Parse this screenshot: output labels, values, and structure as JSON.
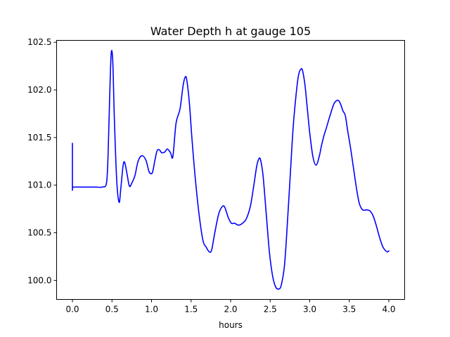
{
  "chart_data": {
    "type": "line",
    "title": "Water Depth h at gauge 105",
    "xlabel": "hours",
    "ylabel": "",
    "xlim": [
      -0.2,
      4.2
    ],
    "ylim": [
      99.8,
      102.52
    ],
    "x_ticks": [
      0.0,
      0.5,
      1.0,
      1.5,
      2.0,
      2.5,
      3.0,
      3.5,
      4.0
    ],
    "x_tick_labels": [
      "0.0",
      "0.5",
      "1.0",
      "1.5",
      "2.0",
      "2.5",
      "3.0",
      "3.5",
      "4.0"
    ],
    "y_ticks": [
      100.0,
      100.5,
      101.0,
      101.5,
      102.0,
      102.5
    ],
    "y_tick_labels": [
      "100.0",
      "100.5",
      "101.0",
      "101.5",
      "102.0",
      "102.5"
    ],
    "grid": false,
    "series": [
      {
        "color": "#0000ff",
        "x": [
          0.0,
          0.0,
          0.01,
          0.1,
          0.2,
          0.3,
          0.38,
          0.43,
          0.45,
          0.47,
          0.49,
          0.51,
          0.53,
          0.56,
          0.59,
          0.61,
          0.64,
          0.66,
          0.69,
          0.72,
          0.75,
          0.79,
          0.83,
          0.88,
          0.93,
          0.97,
          1.01,
          1.04,
          1.07,
          1.1,
          1.13,
          1.17,
          1.2,
          1.24,
          1.27,
          1.31,
          1.36,
          1.4,
          1.43,
          1.45,
          1.48,
          1.51,
          1.55,
          1.6,
          1.65,
          1.69,
          1.73,
          1.76,
          1.8,
          1.85,
          1.9,
          1.93,
          1.97,
          2.01,
          2.05,
          2.1,
          2.15,
          2.2,
          2.25,
          2.29,
          2.33,
          2.36,
          2.38,
          2.41,
          2.45,
          2.49,
          2.53,
          2.57,
          2.61,
          2.64,
          2.68,
          2.71,
          2.75,
          2.79,
          2.83,
          2.86,
          2.89,
          2.91,
          2.94,
          2.97,
          3.0,
          3.04,
          3.08,
          3.12,
          3.15,
          3.18,
          3.21,
          3.26,
          3.31,
          3.36,
          3.39,
          3.42,
          3.45,
          3.48,
          3.52,
          3.56,
          3.6,
          3.63,
          3.67,
          3.72,
          3.76,
          3.8,
          3.84,
          3.88,
          3.92,
          3.95,
          3.98,
          4.0
        ],
        "y": [
          101.44,
          100.98,
          100.98,
          100.98,
          100.98,
          100.98,
          100.98,
          101.02,
          101.3,
          101.9,
          102.38,
          102.3,
          101.7,
          101.05,
          100.82,
          100.95,
          101.2,
          101.24,
          101.12,
          100.99,
          101.02,
          101.1,
          101.25,
          101.31,
          101.26,
          101.14,
          101.13,
          101.25,
          101.36,
          101.37,
          101.34,
          101.35,
          101.38,
          101.34,
          101.3,
          101.65,
          101.8,
          102.05,
          102.14,
          102.08,
          101.85,
          101.5,
          101.1,
          100.7,
          100.42,
          100.35,
          100.3,
          100.32,
          100.5,
          100.7,
          100.78,
          100.76,
          100.66,
          100.6,
          100.6,
          100.58,
          100.6,
          100.65,
          100.78,
          100.98,
          101.2,
          101.28,
          101.26,
          101.1,
          100.7,
          100.3,
          100.05,
          99.93,
          99.91,
          99.95,
          100.15,
          100.5,
          101.05,
          101.6,
          101.97,
          102.16,
          102.22,
          102.2,
          102.05,
          101.8,
          101.55,
          101.3,
          101.21,
          101.3,
          101.42,
          101.52,
          101.6,
          101.74,
          101.86,
          101.89,
          101.85,
          101.78,
          101.73,
          101.57,
          101.37,
          101.14,
          100.92,
          100.8,
          100.74,
          100.74,
          100.73,
          100.68,
          100.58,
          100.46,
          100.36,
          100.32,
          100.3,
          100.31
        ]
      }
    ]
  }
}
